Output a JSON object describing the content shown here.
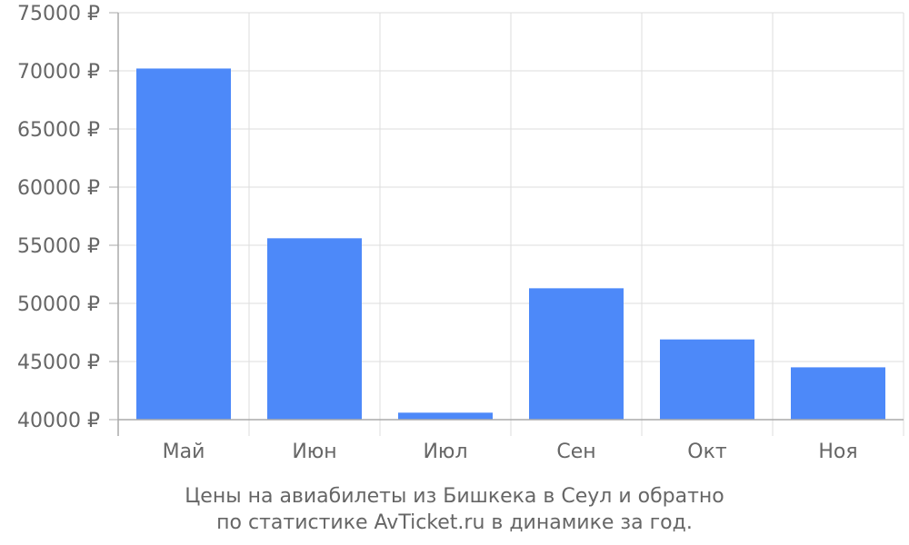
{
  "chart_data": {
    "type": "bar",
    "categories": [
      "Май",
      "Июн",
      "Июл",
      "Сен",
      "Окт",
      "Ноя"
    ],
    "values": [
      70200,
      55600,
      40600,
      51300,
      46900,
      44500
    ],
    "ylim": [
      40000,
      75000
    ],
    "yticks": [
      40000,
      45000,
      50000,
      55000,
      60000,
      65000,
      70000,
      75000
    ],
    "ytick_suffix": " ₽",
    "grid": true,
    "legend": "none",
    "bar_color": "#4d89f9",
    "caption_lines": [
      "Цены на авиабилеты из Бишкека в Сеул и обратно",
      "по статистике AvTicket.ru в динамике за год."
    ]
  },
  "colors": {
    "bar": "#4d89f9",
    "grid": "#dddddd",
    "axis": "#aaaaaa",
    "text": "#666666"
  }
}
